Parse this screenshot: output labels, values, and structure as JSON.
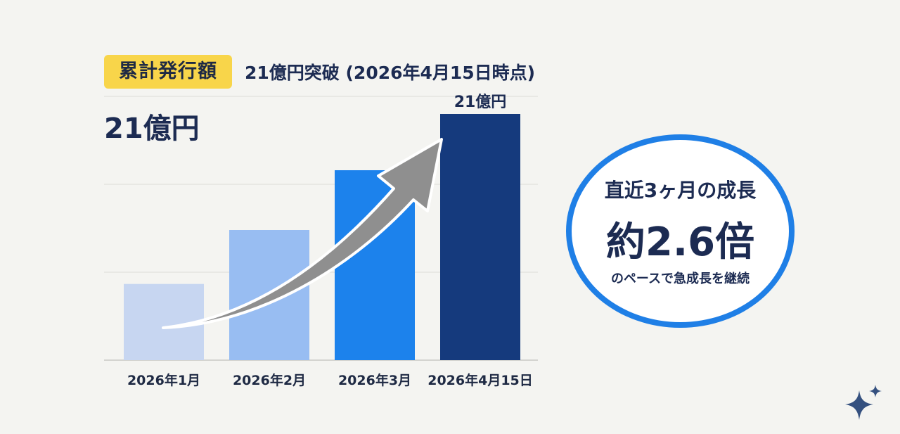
{
  "header": {
    "badge": "累計発行額",
    "headline": "21億円突破 (2026年4月15日時点)",
    "big_total": "21億円"
  },
  "circle": {
    "line1": "直近3ヶ月の成長",
    "line2": "約2.6倍",
    "line3": "のペースで急成長を継続"
  },
  "icons": {
    "arrow": "trend-arrow-icon",
    "sparkle": "sparkle-icon"
  },
  "colors": {
    "badge": "#f8d54a",
    "circle_border": "#1f7fe6",
    "text": "#1c2b52",
    "arrow": "#8f8f8f"
  },
  "chart_data": {
    "type": "bar",
    "categories": [
      "2026年1月",
      "2026年2月",
      "2026年3月",
      "2026年4月15日"
    ],
    "values": [
      6.5,
      11.1,
      16.2,
      21
    ],
    "value_labels": [
      "",
      "",
      "",
      "21億円"
    ],
    "colors": [
      "#c7d6f1",
      "#98bdf2",
      "#1c82ec",
      "#153a7d"
    ],
    "ylim": [
      0,
      22.5
    ],
    "grid": true
  }
}
